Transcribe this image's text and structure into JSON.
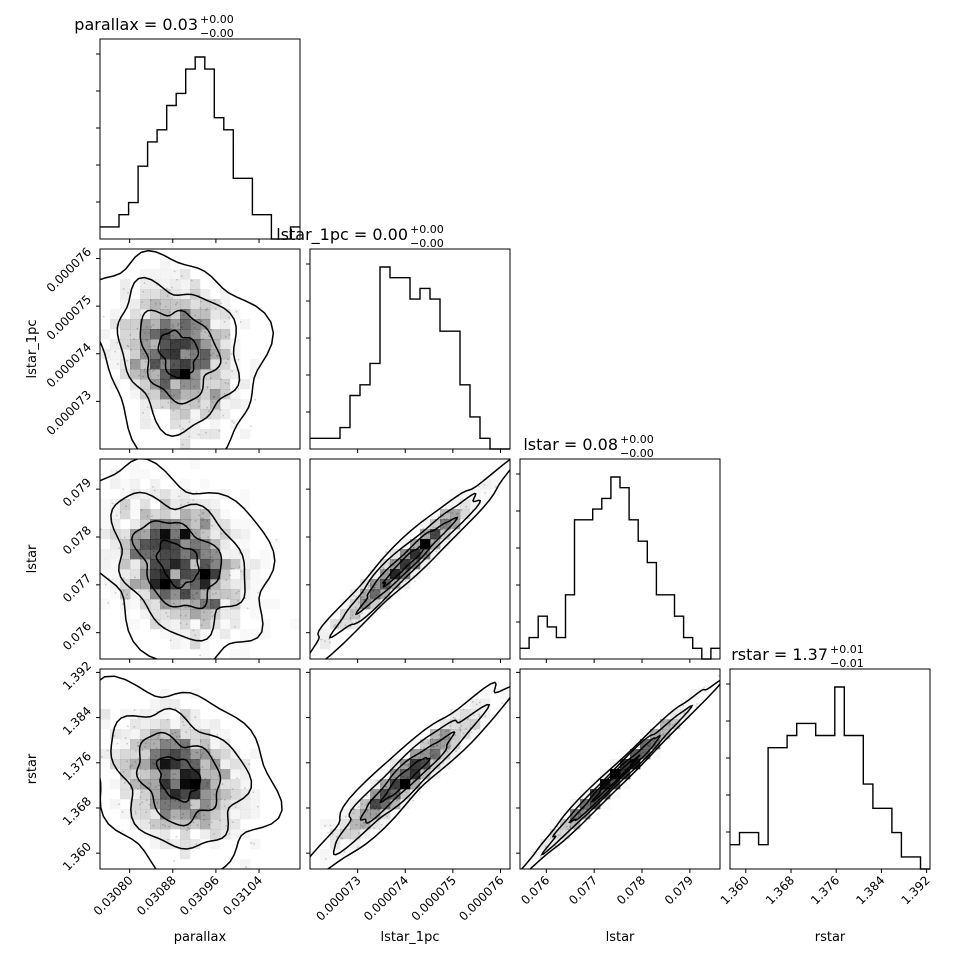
{
  "chart_data": {
    "type": "corner",
    "parameters": [
      "parallax",
      "lstar_1pc",
      "lstar",
      "rstar"
    ],
    "titles": [
      {
        "param": "parallax",
        "main": "parallax = 0.03",
        "upper": "+0.00",
        "lower": "−0.00"
      },
      {
        "param": "lstar_1pc",
        "main": "lstar_1pc = 0.00",
        "upper": "+0.00",
        "lower": "−0.00"
      },
      {
        "param": "lstar",
        "main": "lstar = 0.08",
        "upper": "+0.00",
        "lower": "−0.00"
      },
      {
        "param": "rstar",
        "main": "rstar = 1.37",
        "upper": "+0.01",
        "lower": "−0.01"
      }
    ],
    "xlabels": [
      "parallax",
      "lstar_1pc",
      "lstar",
      "rstar"
    ],
    "ylabels": [
      "lstar_1pc",
      "lstar",
      "rstar"
    ],
    "ranges": [
      [
        0.030745,
        0.031116
      ],
      [
        7.2e-05,
        7.62e-05
      ],
      [
        0.07545,
        0.07963
      ],
      [
        1.3572,
        1.3926
      ]
    ],
    "ticks": [
      [
        0.0308,
        0.03088,
        0.03096,
        0.03104
      ],
      [
        7.3e-05,
        7.4e-05,
        7.5e-05,
        7.6e-05
      ],
      [
        0.076,
        0.077,
        0.078,
        0.079
      ],
      [
        1.36,
        1.368,
        1.376,
        1.384,
        1.392
      ]
    ],
    "tick_labels": [
      [
        "0.03080",
        "0.03088",
        "0.03096",
        "0.03104"
      ],
      [
        "0.000073",
        "0.000074",
        "0.000075",
        "0.000076"
      ],
      [
        "0.076",
        "0.077",
        "0.078",
        "0.079"
      ],
      [
        "1.360",
        "1.368",
        "1.376",
        "1.384",
        "1.392"
      ]
    ],
    "histograms": [
      {
        "param": "parallax",
        "counts": [
          1,
          1,
          2,
          3,
          6,
          8,
          9,
          11,
          12,
          14,
          15,
          14,
          10,
          9,
          5,
          5,
          2,
          2,
          0,
          0,
          1
        ]
      },
      {
        "param": "lstar_1pc",
        "counts": [
          1,
          1,
          1,
          2,
          5,
          6,
          8,
          17,
          16,
          16,
          14,
          15,
          14,
          11,
          11,
          6,
          3,
          1,
          0,
          0
        ]
      },
      {
        "param": "lstar",
        "counts": [
          1,
          2,
          4,
          3,
          2,
          6,
          13,
          13,
          14,
          15,
          17,
          16,
          13,
          11,
          9,
          6,
          6,
          4,
          2,
          1,
          0,
          1
        ]
      },
      {
        "param": "rstar",
        "counts": [
          2,
          3,
          3,
          2,
          10,
          10,
          11,
          12,
          12,
          11,
          11,
          15,
          11,
          11,
          7,
          5,
          5,
          3,
          1,
          1,
          0
        ]
      }
    ],
    "joint_distributions": [
      {
        "x": "parallax",
        "y": "lstar_1pc",
        "mean": [
          0.03089,
          7.4e-05
        ],
        "sd": [
          5.5e-05,
          7.5e-07
        ],
        "rho": -0.18
      },
      {
        "x": "parallax",
        "y": "lstar",
        "mean": [
          0.03089,
          0.07745
        ],
        "sd": [
          6e-05,
          0.00072
        ],
        "rho": -0.3
      },
      {
        "x": "lstar_1pc",
        "y": "lstar",
        "mean": [
          7.4e-05,
          0.07745
        ],
        "sd": [
          7.5e-07,
          0.00072
        ],
        "rho": 0.97
      },
      {
        "x": "parallax",
        "y": "rstar",
        "mean": [
          0.03089,
          1.3733
        ],
        "sd": [
          6e-05,
          0.006
        ],
        "rho": -0.25
      },
      {
        "x": "lstar_1pc",
        "y": "rstar",
        "mean": [
          7.4e-05,
          1.3733
        ],
        "sd": [
          7.5e-07,
          0.006
        ],
        "rho": 0.95
      },
      {
        "x": "lstar",
        "y": "rstar",
        "mean": [
          0.07745,
          1.3733
        ],
        "sd": [
          0.00072,
          0.006
        ],
        "rho": 0.99
      }
    ],
    "colors": {
      "line": "#000000",
      "density": "#000000",
      "background": "#ffffff"
    }
  }
}
